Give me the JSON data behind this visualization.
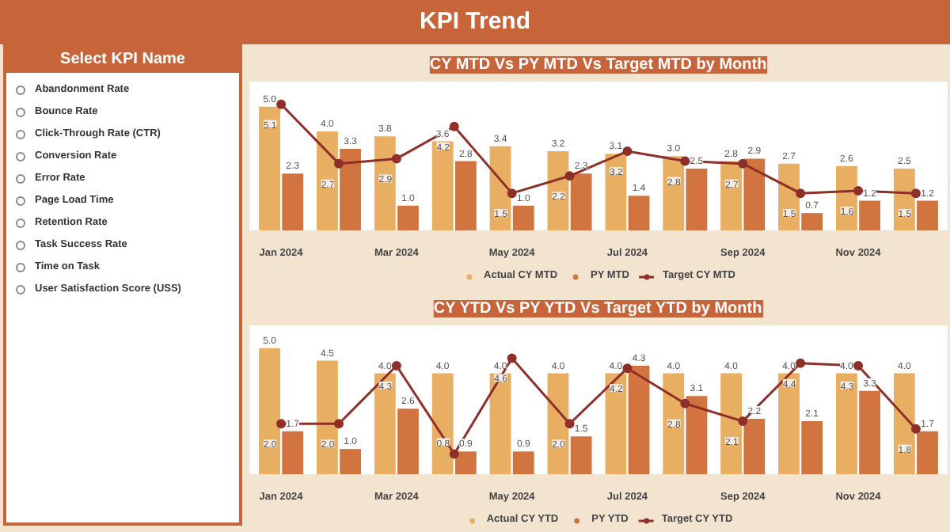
{
  "chart_data": [
    {
      "type": "other",
      "title": "KPI Trend"
    },
    {
      "type": "other",
      "title": "Select KPI Name",
      "annotations": [
        "Abandonment Rate",
        "Bounce Rate",
        "Click-Through Rate (CTR)",
        "Conversion Rate",
        "Error Rate",
        "Page Load Time",
        "Retention Rate",
        "Task Success Rate",
        "Time on Task",
        "User Satisfaction Score (USS)"
      ]
    },
    {
      "type": "bar",
      "title": "CY MTD Vs PY MTD Vs Target MTD by Month",
      "categories": [
        "Jan 2024",
        null,
        "Mar 2024",
        null,
        "May 2024",
        null,
        "Jul 2024",
        null,
        "Sep 2024",
        null,
        "Nov 2024",
        null
      ],
      "series": [
        {
          "name": "Actual CY MTD",
          "color": "#e8ae62",
          "values": [
            5.0,
            4.0,
            3.8,
            3.6,
            3.4,
            3.2,
            3.1,
            3.0,
            2.8,
            2.7,
            2.6,
            2.5
          ],
          "value_labels": [
            "5.0",
            "4.0",
            "3.8",
            "3.6",
            "3.4",
            "3.2",
            "3.1",
            "3.0",
            "2.8",
            "2.7",
            "2.6",
            "2.5"
          ]
        },
        {
          "name": "PY MTD",
          "color": "#d27440",
          "values": [
            2.3,
            3.3,
            1.0,
            2.8,
            1.0,
            2.3,
            1.4,
            2.5,
            2.9,
            0.7,
            1.2,
            1.2
          ],
          "value_labels": [
            "2.3",
            "3.3",
            "1.0",
            "2.8",
            "1.0",
            "2.3",
            "1.4",
            "2.5",
            "2.9",
            "0.7",
            "1.2",
            "1.2"
          ]
        },
        {
          "name": "Target CY MTD",
          "type": "line",
          "color": "#8e2f2a",
          "values": [
            5.1,
            2.7,
            2.9,
            4.2,
            1.5,
            2.2,
            3.2,
            2.8,
            2.7,
            1.5,
            1.6,
            1.5
          ],
          "value_labels": [
            "5.1",
            "2.7",
            "2.9",
            "4.2",
            "1.5",
            "2.2",
            "3.2",
            "2.8",
            "2.7",
            "1.5",
            "1.6",
            "1.5"
          ]
        }
      ],
      "legend": "bottom",
      "marker": "circle"
    },
    {
      "type": "bar",
      "title": "CY YTD Vs PY YTD Vs Target YTD by Month",
      "categories": [
        "Jan 2024",
        null,
        "Mar 2024",
        null,
        "May 2024",
        null,
        "Jul 2024",
        null,
        "Sep 2024",
        null,
        "Nov 2024",
        null
      ],
      "series": [
        {
          "name": "Actual CY YTD",
          "color": "#e8ae62",
          "values": [
            5.0,
            4.5,
            4.0,
            4.0,
            4.0,
            4.0,
            4.0,
            4.0,
            4.0,
            4.0,
            4.0,
            4.0
          ],
          "value_labels": [
            "5.0",
            "4.5",
            "4.0",
            "4.0",
            "4.0",
            "4.0",
            "4.0",
            "4.0",
            "4.0",
            "4.0",
            "4.0",
            "4.0"
          ]
        },
        {
          "name": "PY YTD",
          "color": "#d27440",
          "values": [
            1.7,
            1.0,
            2.6,
            0.9,
            0.9,
            1.5,
            4.3,
            3.1,
            2.2,
            2.1,
            3.3,
            1.7
          ],
          "value_labels": [
            "1.7",
            "1.0",
            "2.6",
            "0.9",
            "0.9",
            "1.5",
            "4.3",
            "3.1",
            "2.2",
            "2.1",
            "3.3",
            "1.7"
          ]
        },
        {
          "name": "Target CY YTD",
          "type": "line",
          "color": "#8e2f2a",
          "values": [
            2.0,
            2.0,
            4.3,
            0.8,
            4.6,
            2.0,
            4.2,
            2.8,
            2.1,
            4.4,
            4.3,
            1.8
          ],
          "value_labels": [
            "2.0",
            "2.0",
            "4.3",
            "0.8",
            "4.6",
            "2.0",
            "4.2",
            "2.8",
            "2.1",
            "4.4",
            "4.3",
            "1.8"
          ]
        }
      ],
      "legend": "bottom",
      "marker": "circle"
    }
  ]
}
